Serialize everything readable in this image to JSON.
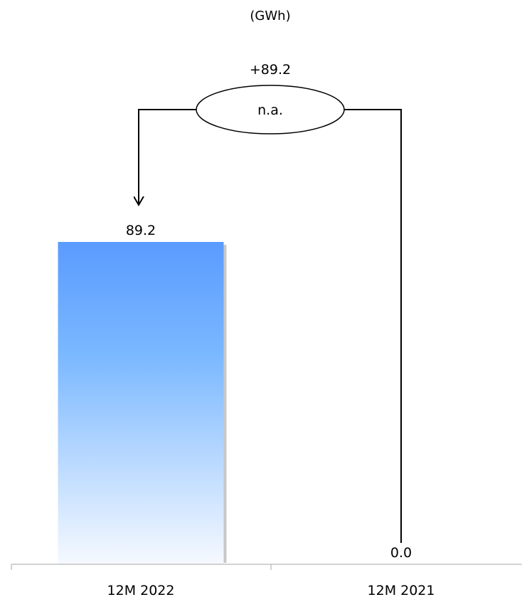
{
  "chart_data": {
    "type": "bar",
    "unit_label": "(GWh)",
    "categories": [
      "12M 2022",
      "12M 2021"
    ],
    "values": [
      89.2,
      0.0
    ],
    "value_labels": [
      "89.2",
      "0.0"
    ],
    "ylim": [
      0,
      89.2
    ],
    "grid": false,
    "legend": "none",
    "change": {
      "absolute_label": "+89.2",
      "percent_label": "n.a.",
      "from_category": "12M 2021",
      "to_category": "12M 2022"
    },
    "colors": {
      "bar_top": "#5b9bff",
      "bar_mid": "#7ab8ff",
      "bar_bottom": "#f6f9ff",
      "bar_shadow": "#c8c8c8",
      "axis": "#a6a6a6",
      "connector": "#000000"
    }
  }
}
